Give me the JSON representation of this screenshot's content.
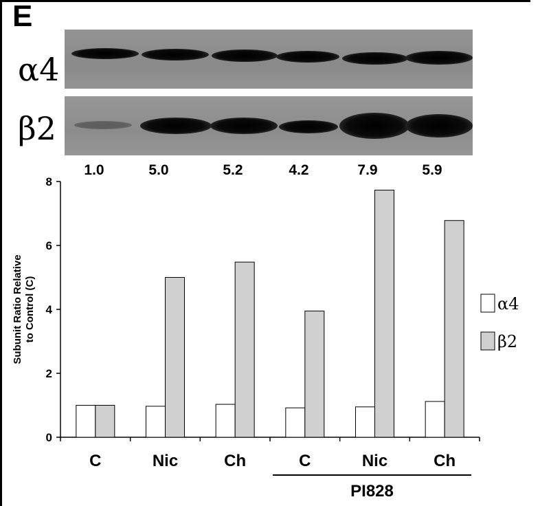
{
  "panel": {
    "letter": "E"
  },
  "blot": {
    "alpha4_label": "α4",
    "beta2_label": "β2",
    "ratios": [
      "1.0",
      "5.0",
      "5.2",
      "4.2",
      "7.9",
      "5.9"
    ]
  },
  "colors": {
    "alpha4": "#ffffff",
    "beta2": "#d0d0d0",
    "bar_stroke": "#000000"
  },
  "chart_data": {
    "type": "bar",
    "title": "",
    "xlabel": "",
    "ylabel": "Subunit Ratio Relative to Control (C)",
    "ylabel_lines": [
      "Subunit Ratio Relative",
      "to Control (C)"
    ],
    "categories": [
      "C",
      "Nic",
      "Ch",
      "C",
      "Nic",
      "Ch"
    ],
    "group_label": "PI828",
    "group_categories": [
      3,
      4,
      5
    ],
    "ylim": [
      0,
      8
    ],
    "yticks": [
      0,
      2,
      4,
      6,
      8
    ],
    "series": [
      {
        "name": "α4",
        "values": [
          1.0,
          0.97,
          1.03,
          0.92,
          0.95,
          1.12
        ]
      },
      {
        "name": "β2",
        "values": [
          1.0,
          5.0,
          5.48,
          3.95,
          7.73,
          6.78
        ]
      }
    ],
    "legend_position": "right",
    "grid": false
  }
}
